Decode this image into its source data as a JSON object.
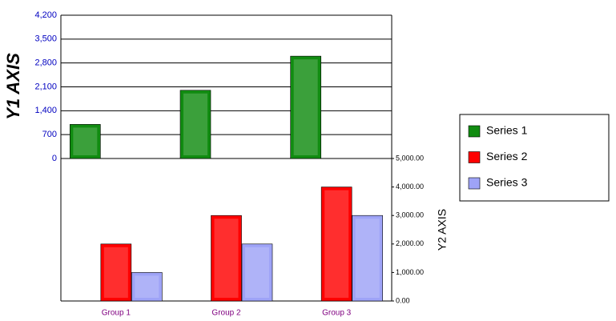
{
  "chart_data": {
    "type": "bar",
    "y_label": "Y1 AXIS",
    "y2_label": "Y2 AXIS",
    "categories": [
      "Group 1",
      "Group 2",
      "Group 3"
    ],
    "series": [
      {
        "name": "Series 1",
        "color": "#118c11",
        "values": [
          1000,
          2000,
          3000
        ]
      },
      {
        "name": "Series 2",
        "color": "#ff0000",
        "values": [
          2000,
          3000,
          4000
        ],
        "axis": "y2"
      },
      {
        "name": "Series 3",
        "color": "#9ea3f7",
        "values": [
          1000,
          2000,
          3000
        ],
        "axis": "y2"
      }
    ],
    "ylim": [
      0,
      4200
    ],
    "yticks": [
      0,
      700,
      {
        "value": 1400,
        "label": "1,400"
      },
      {
        "value": 2100,
        "label": "2,100"
      },
      {
        "value": 2800,
        "label": "2,800"
      },
      {
        "value": 3500,
        "label": "3,500"
      },
      {
        "value": 4200,
        "label": "4,200"
      }
    ],
    "y2lim": [
      0,
      5000
    ],
    "y2ticks": [
      {
        "value": 0,
        "label": "0.00"
      },
      {
        "value": 1000,
        "label": "1,000.00"
      },
      {
        "value": 2000,
        "label": "2,000.00"
      },
      {
        "value": 3000,
        "label": "3,000.00"
      },
      {
        "value": 4000,
        "label": "4,000.00"
      },
      {
        "value": 5000,
        "label": "5,000.00"
      }
    ],
    "grid": true,
    "legend": "right"
  }
}
